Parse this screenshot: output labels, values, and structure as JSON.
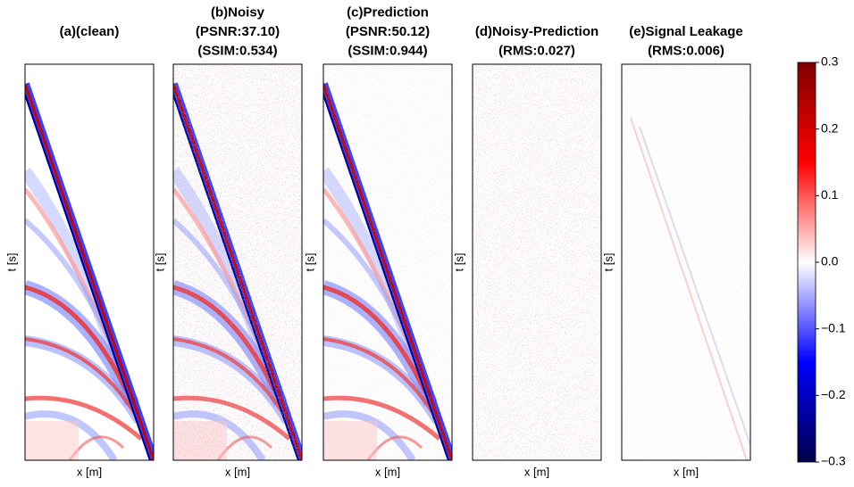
{
  "panels": [
    {
      "title": [
        "(a)(clean)"
      ],
      "xlabel": "x [m]",
      "ylabel": "t [s]"
    },
    {
      "title": [
        "(b)Noisy",
        "(PSNR:37.10)",
        "(SSIM:0.534)"
      ],
      "xlabel": "x [m]",
      "ylabel": "t [s]"
    },
    {
      "title": [
        "(c)Prediction",
        "(PSNR:50.12)",
        "(SSIM:0.944)"
      ],
      "xlabel": "x [m]",
      "ylabel": "t [s]"
    },
    {
      "title": [
        "(d)Noisy-Prediction",
        "(RMS:0.027)"
      ],
      "xlabel": "x [m]",
      "ylabel": "t [s]"
    },
    {
      "title": [
        "(e)Signal Leakage",
        "(RMS:0.006)"
      ],
      "xlabel": "x [m]",
      "ylabel": "t [s]"
    }
  ],
  "colorbar": {
    "lim": [
      -0.3,
      0.3
    ],
    "ticks": [
      0.3,
      0.2,
      0.1,
      {
        "value": 0,
        "label": "0.0"
      },
      {
        "value": -0.1,
        "label": "−0.1"
      },
      {
        "value": -0.2,
        "label": "−0.2"
      },
      {
        "value": -0.3,
        "label": "−0.3"
      }
    ]
  }
}
